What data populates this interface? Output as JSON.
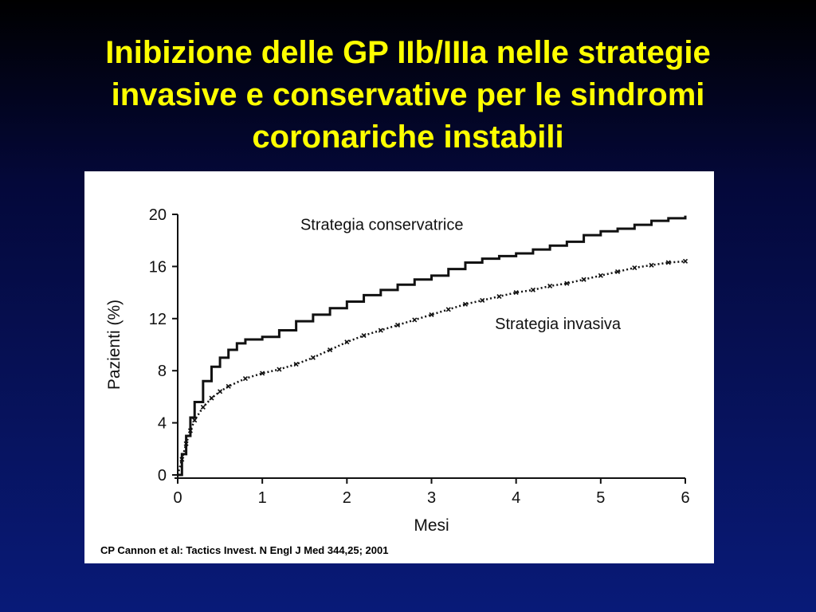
{
  "slide": {
    "title_lines": [
      "Inibizione delle GP IIb/IIIa nelle strategie",
      "invasive e conservative per le sindromi",
      "coronariche instabili"
    ],
    "citation": "CP Cannon et al: Tactics Invest. N Engl J Med 344,25; 2001"
  },
  "colors": {
    "title": "#ffff00",
    "background_top": "#000000",
    "background_bottom": "#081a78",
    "panel": "#ffffff",
    "ink": "#111111"
  },
  "chart_data": {
    "type": "line",
    "title": "",
    "xlabel": "Mesi",
    "ylabel": "Pazienti (%)",
    "xlim": [
      0,
      6
    ],
    "ylim": [
      0,
      20
    ],
    "xticks": [
      0,
      1,
      2,
      3,
      4,
      5,
      6
    ],
    "yticks": [
      0,
      4,
      8,
      12,
      16,
      20
    ],
    "grid": false,
    "series": [
      {
        "name": "Strategia conservatrice",
        "style": "solid-step",
        "x": [
          0,
          0.05,
          0.1,
          0.15,
          0.2,
          0.3,
          0.4,
          0.5,
          0.6,
          0.7,
          0.8,
          1.0,
          1.2,
          1.4,
          1.6,
          1.8,
          2.0,
          2.2,
          2.4,
          2.6,
          2.8,
          3.0,
          3.2,
          3.4,
          3.6,
          3.8,
          4.0,
          4.2,
          4.4,
          4.6,
          4.8,
          5.0,
          5.2,
          5.4,
          5.6,
          5.8,
          6.0
        ],
        "y": [
          0,
          1.6,
          3.0,
          4.4,
          5.6,
          7.2,
          8.3,
          9.0,
          9.6,
          10.1,
          10.4,
          10.6,
          11.1,
          11.8,
          12.3,
          12.8,
          13.3,
          13.8,
          14.2,
          14.6,
          15.0,
          15.3,
          15.8,
          16.3,
          16.6,
          16.8,
          17.0,
          17.3,
          17.6,
          17.9,
          18.4,
          18.7,
          18.9,
          19.2,
          19.5,
          19.7,
          19.9
        ]
      },
      {
        "name": "Strategia invasiva",
        "style": "dotted-cross",
        "x": [
          0,
          0.05,
          0.1,
          0.15,
          0.2,
          0.3,
          0.4,
          0.5,
          0.6,
          0.8,
          1.0,
          1.2,
          1.4,
          1.6,
          1.8,
          2.0,
          2.2,
          2.4,
          2.6,
          2.8,
          3.0,
          3.2,
          3.4,
          3.6,
          3.8,
          4.0,
          4.2,
          4.4,
          4.6,
          4.8,
          5.0,
          5.2,
          5.4,
          5.6,
          5.8,
          6.0
        ],
        "y": [
          0,
          1.2,
          2.4,
          3.4,
          4.2,
          5.2,
          5.9,
          6.4,
          6.8,
          7.4,
          7.8,
          8.1,
          8.5,
          9.0,
          9.6,
          10.2,
          10.7,
          11.1,
          11.5,
          11.9,
          12.3,
          12.7,
          13.1,
          13.4,
          13.7,
          14.0,
          14.2,
          14.5,
          14.7,
          15.0,
          15.3,
          15.6,
          15.9,
          16.1,
          16.3,
          16.4
        ]
      }
    ],
    "annotations": [
      {
        "text": "Strategia conservatrice",
        "x": 1.45,
        "y": 18.8
      },
      {
        "text": "Strategia invasiva",
        "x": 3.75,
        "y": 11.2
      }
    ]
  }
}
